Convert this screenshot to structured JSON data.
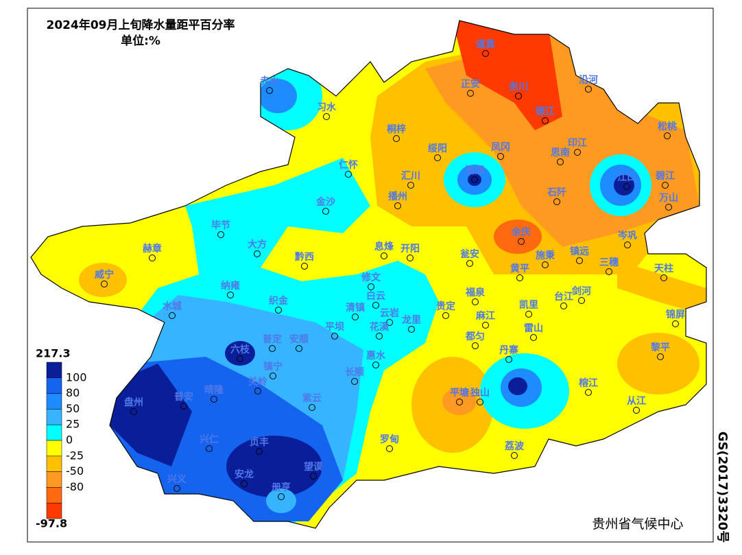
{
  "header": {
    "title": "2024年09月上旬降水量距平百分率",
    "unit": "单位:%"
  },
  "legend": {
    "max": 217.3,
    "min": -97.8,
    "breaks": [
      100,
      80,
      50,
      25,
      0,
      -25,
      -50,
      -80
    ],
    "colors": [
      "#0a1e9a",
      "#1464f0",
      "#1e8cff",
      "#36b4ff",
      "#00ffff",
      "#ffff00",
      "#ffc000",
      "#ff9a20",
      "#ff6a10",
      "#ff3a00"
    ]
  },
  "stations": [
    "道真",
    "赤水",
    "正安",
    "务川",
    "沿河",
    "习水",
    "德江",
    "松桃",
    "桐梓",
    "绥阳",
    "凤冈",
    "印江",
    "思南",
    "仁怀",
    "湄潭",
    "江口",
    "碧江",
    "汇川",
    "播州",
    "石阡",
    "万山",
    "金沙",
    "毕节",
    "岑巩",
    "大方",
    "息烽",
    "开阳",
    "余庆",
    "赫章",
    "黔西",
    "瓮安",
    "施秉",
    "镇远",
    "三穗",
    "天柱",
    "威宁",
    "黄平",
    "修文",
    "纳雍",
    "白云",
    "福泉",
    "台江",
    "剑河",
    "织金",
    "水城",
    "贵定",
    "凯里",
    "清镇",
    "云岩",
    "锦屏",
    "麻江",
    "平坝",
    "龙里",
    "花溪",
    "雷山",
    "普定",
    "安顺",
    "都匀",
    "六枝",
    "黎平",
    "丹寨",
    "惠水",
    "镇宁",
    "长顺",
    "关岭",
    "晴隆",
    "普安",
    "紫云",
    "平塘",
    "独山",
    "榕江",
    "盘州",
    "从江",
    "罗甸",
    "兴仁",
    "贞丰",
    "荔波",
    "望谟",
    "安龙",
    "兴义",
    "册亨"
  ],
  "map_code": "GS(2017)3320号",
  "credit": "贵州省气候中心"
}
